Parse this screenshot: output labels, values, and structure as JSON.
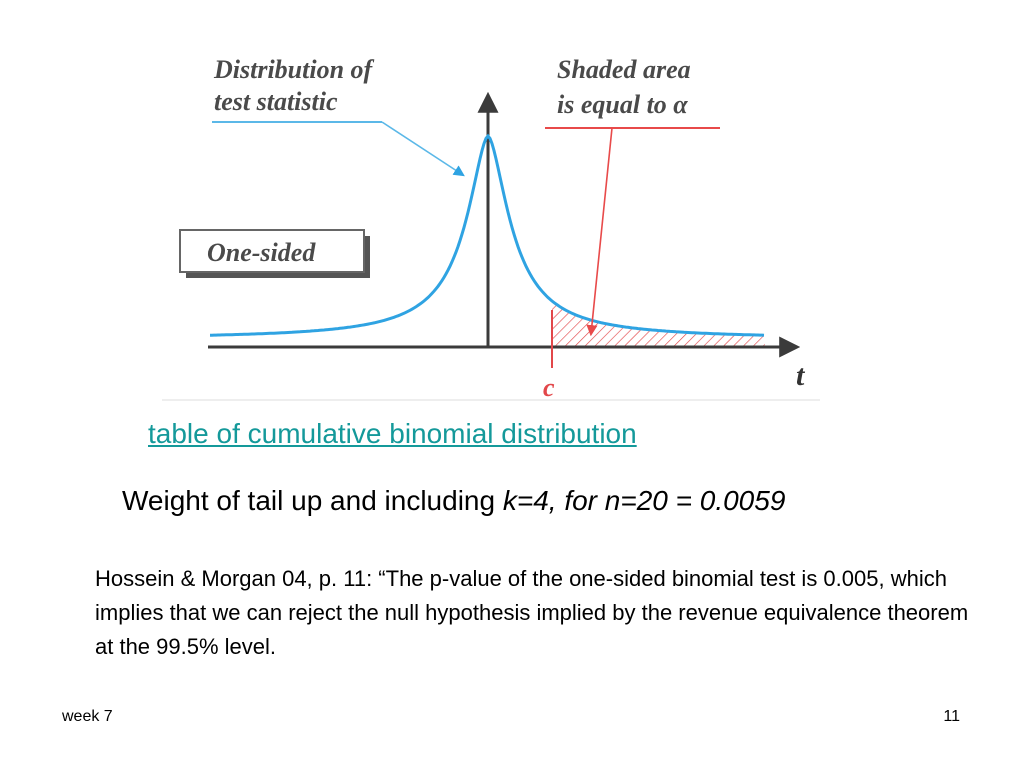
{
  "diagram": {
    "distribution_label": [
      "Distribution of",
      "test statistic"
    ],
    "shaded_label": [
      "Shaded area",
      "is equal to α"
    ],
    "one_sided_label": "One-sided",
    "critical_label": "c",
    "axis_label": "t",
    "colors": {
      "curve": "#2fa3e2",
      "shade": "#e2474a",
      "axis": "#3b3b3b",
      "pointer_blue": "#5bb8e8",
      "pointer_red": "#e84a4a"
    }
  },
  "link": {
    "text": "table of cumulative binomial distribution"
  },
  "weight": {
    "prefix": "Weight of tail up and including ",
    "italic": "k=4, for n=20 = 0.0059"
  },
  "quote": {
    "text": "Hossein & Morgan 04, p. 11: “The p-value of the one-sided binomial test is 0.005, which implies that we can reject the null hypothesis implied by the revenue equivalence theorem at the 99.5% level."
  },
  "footer": {
    "left": "week 7",
    "right": "11"
  }
}
